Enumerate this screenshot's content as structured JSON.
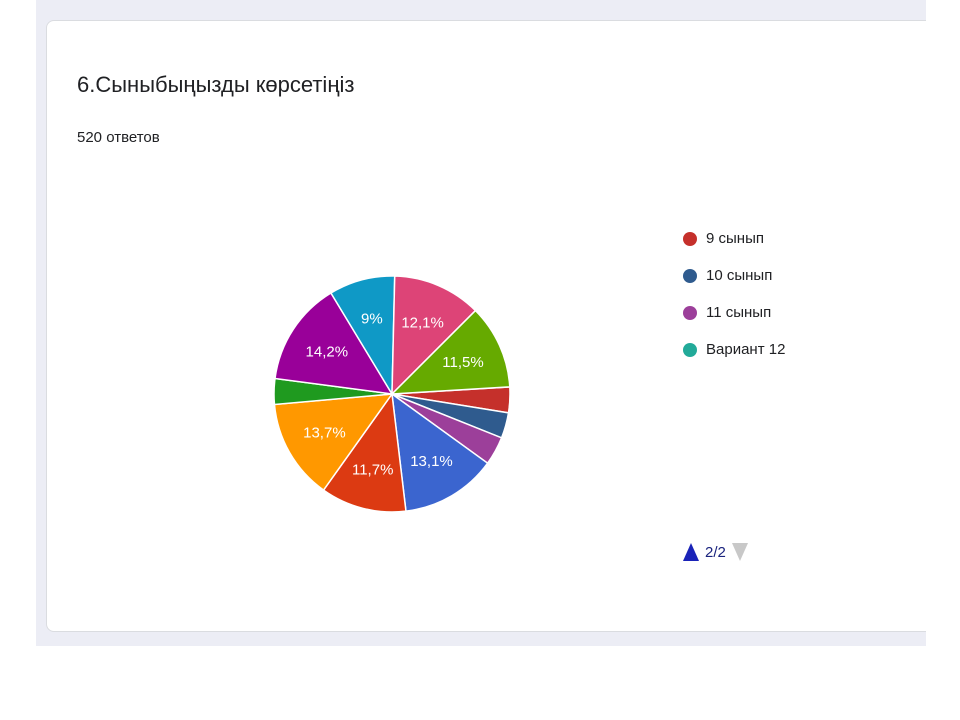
{
  "question": {
    "title": "6.Сыныбыңызды көрсетіңіз",
    "responses": "520 ответов"
  },
  "chart_data": {
    "type": "pie",
    "title": "6.Сыныбыңызды көрсетіңіз",
    "slices": [
      {
        "label": "",
        "value": 3.5,
        "percent_label": "",
        "color": "#c5302b"
      },
      {
        "label": "",
        "value": 3.5,
        "percent_label": "",
        "color": "#2f5b8e"
      },
      {
        "label": "",
        "value": 3.9,
        "percent_label": "",
        "color": "#9c3f9a"
      },
      {
        "label": "",
        "value": 13.1,
        "percent_label": "13,1%",
        "color": "#3b65cf"
      },
      {
        "label": "",
        "value": 11.7,
        "percent_label": "11,7%",
        "color": "#dc3a12"
      },
      {
        "label": "",
        "value": 13.7,
        "percent_label": "13,7%",
        "color": "#ff9800"
      },
      {
        "label": "",
        "value": 3.5,
        "percent_label": "",
        "color": "#1f9a1f"
      },
      {
        "label": "",
        "value": 14.2,
        "percent_label": "14,2%",
        "color": "#990099"
      },
      {
        "label": "",
        "value": 9.0,
        "percent_label": "9%",
        "color": "#0f99c6"
      },
      {
        "label": "",
        "value": 12.1,
        "percent_label": "12,1%",
        "color": "#dd4477"
      },
      {
        "label": "",
        "value": 11.5,
        "percent_label": "11,5%",
        "color": "#66aa00"
      }
    ],
    "legend": [
      {
        "label": "9 сынып",
        "color": "#c5302b"
      },
      {
        "label": "10 сынып",
        "color": "#2f5b8e"
      },
      {
        "label": "11 сынып",
        "color": "#9c3f9a"
      },
      {
        "label": "Вариант 12",
        "color": "#22aa99"
      }
    ],
    "legend_placement": "right"
  },
  "pager": {
    "text": "2/2"
  }
}
